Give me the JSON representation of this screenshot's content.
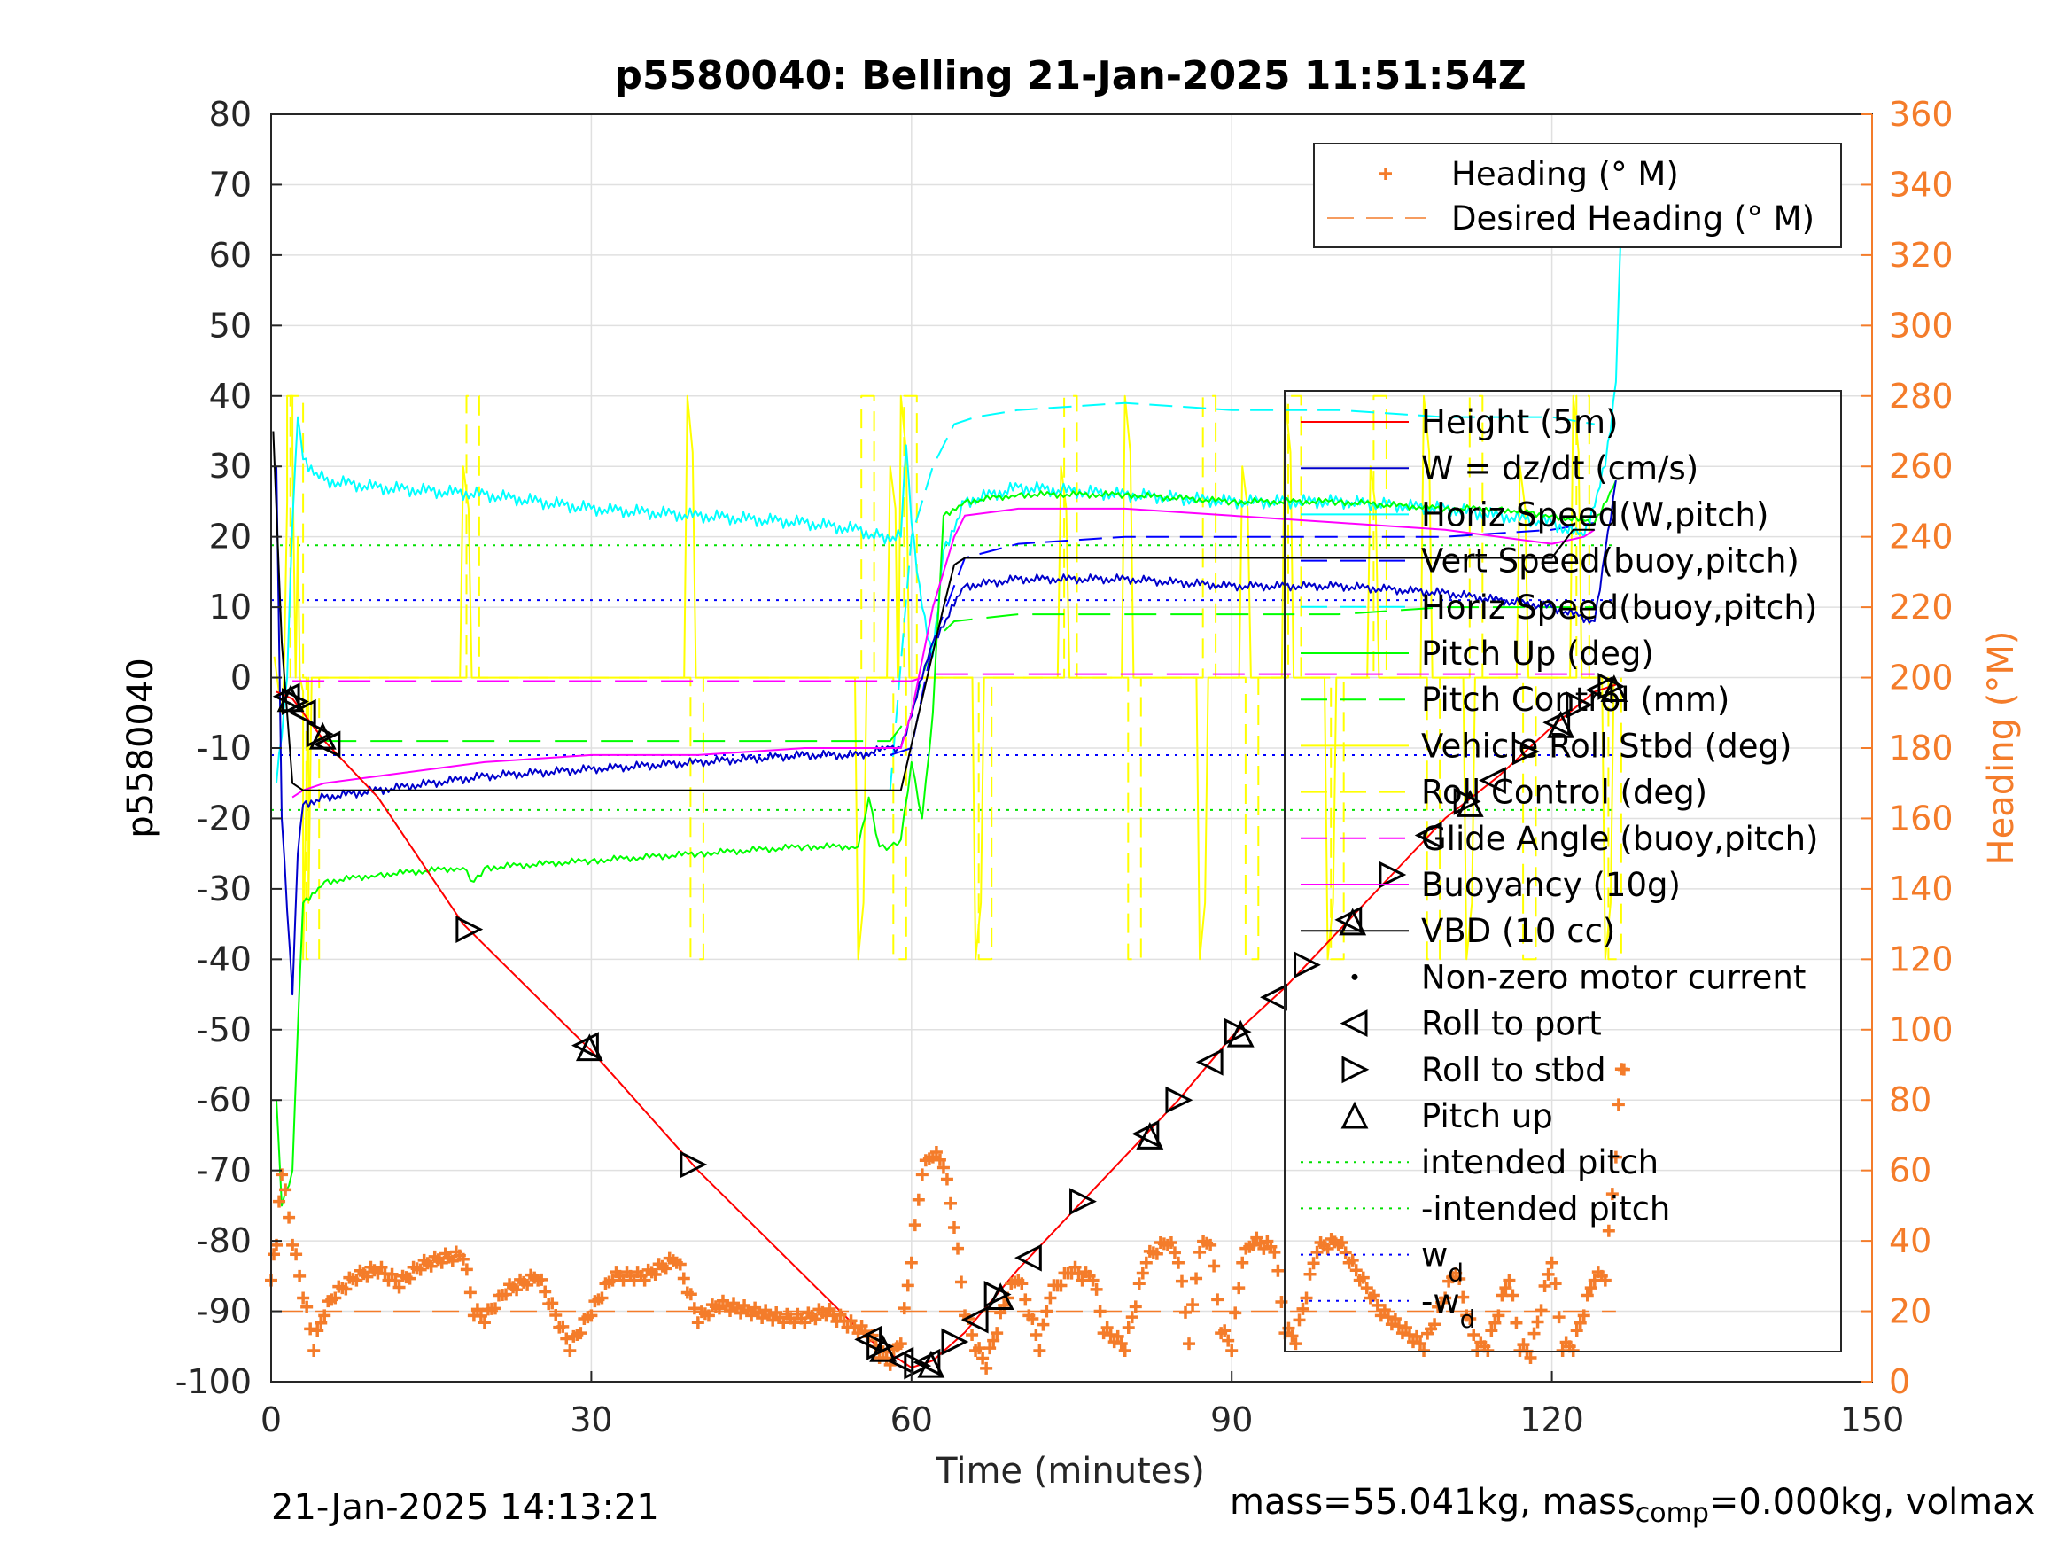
{
  "chart_data": {
    "type": "line",
    "title": "p5580040: Belling 21-Jan-2025 11:51:54Z",
    "xlabel": "Time (minutes)",
    "ylabel": "p5580040",
    "y2label": "Heading (°M)",
    "xlim": [
      0,
      150
    ],
    "ylim": [
      -100,
      80
    ],
    "y2lim": [
      0,
      360
    ],
    "xticks": [
      "0",
      "30",
      "60",
      "90",
      "120",
      "150"
    ],
    "yticks": [
      "80",
      "70",
      "60",
      "50",
      "40",
      "30",
      "20",
      "10",
      "0",
      "-10",
      "-20",
      "-30",
      "-40",
      "-50",
      "-60",
      "-70",
      "-80",
      "-90",
      "-100"
    ],
    "y2ticks": [
      "360",
      "340",
      "320",
      "300",
      "280",
      "260",
      "240",
      "220",
      "200",
      "180",
      "160",
      "140",
      "120",
      "100",
      "80",
      "60",
      "40",
      "20",
      "0"
    ],
    "grid": true,
    "colors": {
      "height": "#ff0000",
      "w": "#0000cc",
      "horiz_speed": "#00ffff",
      "vert_speed_buoy": "#0000ff",
      "pitch": "#00ff00",
      "roll": "#ffff00",
      "buoyancy": "#ff00ff",
      "vbd": "#000000",
      "heading": "#f47c2a",
      "intended_pitch": "#00e000",
      "wd": "#0000ff",
      "axis_right": "#f47c2a"
    },
    "legend_heading": [
      {
        "label": "Heading (° M)",
        "style": "marker-plus"
      },
      {
        "label": "Desired Heading (° M)",
        "style": "dash"
      }
    ],
    "legend_main": [
      {
        "label": "Height (5m)",
        "style": "solid",
        "color": "#ff0000"
      },
      {
        "label": "W = dz/dt (cm/s)",
        "style": "solid",
        "color": "#0000cc"
      },
      {
        "label": "Horiz Speed(W,pitch)",
        "style": "solid",
        "color": "#00ffff"
      },
      {
        "label": "Vert Speed(buoy,pitch)",
        "style": "dash",
        "color": "#0000ff"
      },
      {
        "label": "Horiz Speed(buoy,pitch)",
        "style": "dash",
        "color": "#00ffff"
      },
      {
        "label": "Pitch Up (deg)",
        "style": "solid",
        "color": "#00ff00"
      },
      {
        "label": "Pitch Control (mm)",
        "style": "dash",
        "color": "#00ff00"
      },
      {
        "label": "Vehicle Roll Stbd (deg)",
        "style": "solid",
        "color": "#ffff00"
      },
      {
        "label": "Roll Control (deg)",
        "style": "dash",
        "color": "#ffff00"
      },
      {
        "label": "Glide Angle (buoy,pitch)",
        "style": "dash",
        "color": "#ff00ff"
      },
      {
        "label": "Buoyancy (10g)",
        "style": "solid",
        "color": "#ff00ff"
      },
      {
        "label": "VBD (10 cc)",
        "style": "solid",
        "color": "#000000"
      },
      {
        "label": "Non-zero motor current",
        "style": "dot",
        "color": "#000000"
      },
      {
        "label": "Roll to port",
        "style": "tri-left",
        "color": "#000000"
      },
      {
        "label": "Roll to stbd",
        "style": "tri-right",
        "color": "#000000"
      },
      {
        "label": "Pitch up",
        "style": "tri-up",
        "color": "#000000"
      },
      {
        "label": "intended pitch",
        "style": "dotted",
        "color": "#00e000"
      },
      {
        "label": "-intended pitch",
        "style": "dotted",
        "color": "#00e000"
      },
      {
        "label": "w",
        "sub": "d",
        "style": "dotted",
        "color": "#0000ff"
      },
      {
        "label": "-w",
        "sub": "d",
        "style": "dotted",
        "color": "#0000ff"
      }
    ],
    "series": {
      "height": {
        "x": [
          0.5,
          2,
          5,
          10,
          18,
          30,
          40,
          48,
          56,
          60,
          62,
          65,
          70,
          75,
          80,
          85,
          90,
          95,
          100,
          105,
          110,
          115,
          120,
          124,
          126
        ],
        "y": [
          -2,
          -3,
          -9,
          -17,
          -35,
          -53,
          -70,
          -82,
          -94,
          -98,
          -97,
          -93,
          -84,
          -76,
          -68,
          -60,
          -51,
          -44,
          -36,
          -28,
          -20,
          -14,
          -7,
          -2,
          -1
        ]
      },
      "w_dzdt": {
        "x": [
          0.5,
          1,
          2,
          2.5,
          3,
          5,
          10,
          20,
          30,
          40,
          50,
          55,
          58,
          59,
          62,
          65,
          70,
          80,
          90,
          100,
          110,
          115,
          120,
          124,
          125,
          126
        ],
        "y": [
          30,
          -20,
          -45,
          -25,
          -18,
          -17,
          -16,
          -14,
          -13,
          -12,
          -11,
          -11,
          -10,
          -10,
          5,
          13,
          14,
          14,
          13,
          13,
          12,
          11,
          10,
          8,
          18,
          28
        ]
      },
      "horiz_speed": {
        "x": [
          0.5,
          1.5,
          2,
          2.5,
          3,
          5,
          10,
          20,
          30,
          40,
          50,
          55,
          57,
          59,
          59.5,
          60,
          61,
          62,
          63,
          65,
          70,
          80,
          90,
          100,
          110,
          115,
          120,
          123,
          125,
          126,
          126.5
        ],
        "y": [
          -15,
          0,
          22,
          37,
          31,
          28,
          27,
          26,
          24,
          23,
          22,
          21,
          20,
          20,
          33,
          22,
          10,
          3,
          18,
          25,
          27,
          26,
          25,
          25,
          24,
          23,
          22,
          20,
          30,
          42,
          65
        ]
      },
      "horiz_speed_buoy": {
        "x": [
          58,
          60,
          62,
          64,
          66,
          70,
          80,
          90,
          100,
          110,
          120,
          124
        ],
        "y": [
          -16,
          20,
          30,
          36,
          37,
          38,
          39,
          38,
          38,
          37,
          37,
          36
        ]
      },
      "vert_speed_buoy": {
        "x": [
          58,
          60,
          62,
          65,
          70,
          80,
          90,
          100,
          110,
          120,
          124
        ],
        "y": [
          -11,
          -10,
          5,
          17,
          19,
          20,
          20,
          20,
          20,
          21,
          22
        ]
      },
      "pitch_up": {
        "x": [
          0.5,
          1,
          2,
          2.5,
          3,
          5,
          10,
          18,
          19,
          20,
          30,
          40,
          50,
          55,
          56,
          57,
          58,
          59,
          60,
          61,
          62,
          63,
          65,
          70,
          80,
          90,
          100,
          110,
          115,
          120,
          124,
          126
        ],
        "y": [
          -60,
          -75,
          -70,
          -50,
          -32,
          -29,
          -28,
          -27,
          -29,
          -27,
          -26,
          -25,
          -24,
          -24,
          -17,
          -24,
          -24,
          -23,
          -12,
          -20,
          -5,
          23,
          25,
          26,
          26,
          25,
          25,
          24,
          24,
          23,
          22,
          28
        ]
      },
      "pitch_control": {
        "x": [
          5,
          55,
          58,
          60,
          62,
          64,
          70,
          80,
          90,
          100,
          110,
          120,
          124
        ],
        "y": [
          -9,
          -9,
          -9,
          -5,
          5,
          8,
          9,
          9,
          9,
          9,
          10,
          10,
          10
        ]
      },
      "buoyancy": {
        "x": [
          2,
          3,
          5,
          10,
          20,
          30,
          40,
          50,
          58,
          59,
          60,
          62,
          64,
          65,
          70,
          80,
          90,
          100,
          110,
          120,
          123,
          124
        ],
        "y": [
          -17,
          -16,
          -15,
          -14,
          -12,
          -11,
          -11,
          -10,
          -10,
          -10,
          -5,
          10,
          20,
          23,
          24,
          24,
          23,
          22,
          21,
          19,
          20,
          21
        ]
      },
      "glide_angle": {
        "x": [
          2,
          60,
          62,
          124
        ],
        "y": [
          -0.5,
          -0.5,
          0.5,
          0.5
        ]
      },
      "vbd": {
        "x": [
          0.2,
          1,
          2,
          3,
          4,
          5,
          10,
          20,
          30,
          40,
          50,
          58,
          59,
          63,
          64,
          65,
          70,
          80,
          90,
          100,
          110,
          120,
          121,
          122,
          124
        ],
        "y": [
          35,
          5,
          -15,
          -16,
          -16,
          -16,
          -16,
          -16,
          -16,
          -16,
          -16,
          -16,
          -16,
          10,
          16,
          17,
          17,
          17,
          17,
          17,
          17,
          17,
          19,
          21,
          21
        ]
      },
      "roll_spikes_x": [
        1.5,
        3,
        18,
        39,
        55,
        58,
        59,
        66,
        74,
        80,
        87,
        91,
        95,
        99,
        103,
        108,
        112,
        117,
        122,
        125
      ],
      "heading_deg": {
        "x": [
          0,
          0.5,
          1,
          2,
          3,
          4,
          5,
          6,
          8,
          10,
          12,
          14,
          16,
          18,
          19,
          20,
          22,
          25,
          28,
          30,
          32,
          35,
          38,
          40,
          42,
          45,
          48,
          50,
          52,
          55,
          56,
          57,
          58,
          59,
          60,
          61,
          62,
          63,
          64,
          65,
          66,
          67,
          68,
          69,
          70,
          71,
          72,
          73,
          75,
          76,
          77,
          78,
          80,
          82,
          84,
          85,
          86,
          87,
          88,
          89,
          90,
          91,
          92,
          94,
          95,
          96,
          98,
          100,
          102,
          104,
          106,
          108,
          110,
          111,
          112,
          113,
          114,
          116,
          117,
          118,
          120,
          121,
          122,
          123,
          124,
          125,
          126,
          126.5,
          127
        ],
        "y": [
          30,
          40,
          60,
          40,
          25,
          10,
          20,
          25,
          30,
          32,
          28,
          33,
          35,
          36,
          20,
          18,
          26,
          30,
          10,
          20,
          30,
          30,
          35,
          18,
          22,
          20,
          18,
          18,
          20,
          15,
          14,
          8,
          6,
          12,
          35,
          60,
          65,
          62,
          45,
          20,
          10,
          5,
          15,
          25,
          30,
          20,
          10,
          25,
          32,
          30,
          30,
          15,
          10,
          35,
          40,
          35,
          12,
          38,
          40,
          15,
          10,
          35,
          40,
          38,
          15,
          12,
          38,
          40,
          30,
          20,
          15,
          10,
          25,
          32,
          20,
          10,
          10,
          30,
          10,
          8,
          35,
          10,
          10,
          20,
          30,
          30,
          65,
          90,
          85
        ]
      },
      "desired_heading_deg": 20,
      "intended_pitch": 18.8,
      "wd": 11
    }
  },
  "footer": {
    "timestamp": "21-Jan-2025 14:13:21",
    "mass_text": "mass=55.041kg, mass",
    "mass_sub": "comp",
    "mass_rest": "=0.000kg, volmax"
  }
}
